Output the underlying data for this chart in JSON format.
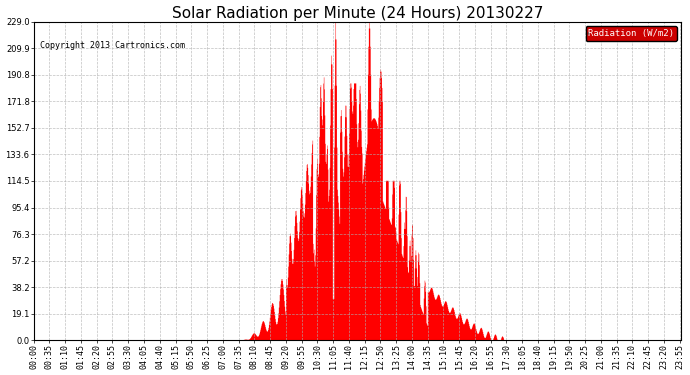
{
  "title": "Solar Radiation per Minute (24 Hours) 20130227",
  "copyright_text": "Copyright 2013 Cartronics.com",
  "legend_label": "Radiation (W/m2)",
  "y_ticks": [
    0.0,
    19.1,
    38.2,
    57.2,
    76.3,
    95.4,
    114.5,
    133.6,
    152.7,
    171.8,
    190.8,
    209.9,
    229.0
  ],
  "y_max": 229.0,
  "fill_color": "#ff0000",
  "line_color": "#ff0000",
  "bg_color": "#ffffff",
  "grid_color": "#b0b0b0",
  "dashed_zero_color": "#ff0000",
  "title_fontsize": 11,
  "tick_fontsize": 6,
  "legend_bg": "#cc0000",
  "legend_text_color": "#ffffff",
  "tick_step_minutes": 35
}
